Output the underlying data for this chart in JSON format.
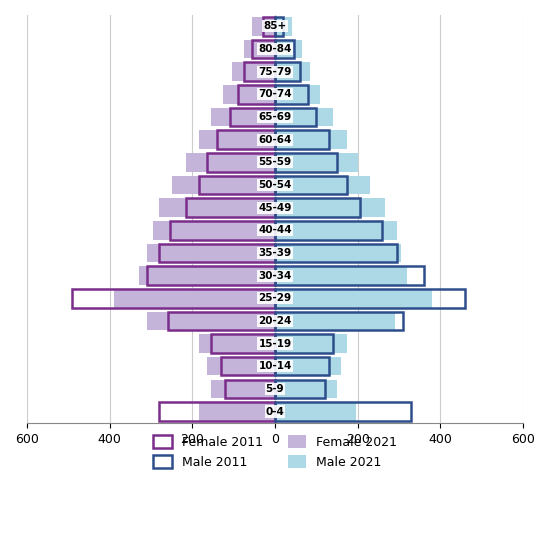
{
  "age_groups": [
    "0-4",
    "5-9",
    "10-14",
    "15-19",
    "20-24",
    "25-29",
    "30-34",
    "35-39",
    "40-44",
    "45-49",
    "50-54",
    "55-59",
    "60-64",
    "65-69",
    "70-74",
    "75-79",
    "80-84",
    "85+"
  ],
  "female_2011": [
    280,
    120,
    130,
    155,
    260,
    490,
    310,
    280,
    255,
    215,
    185,
    165,
    140,
    110,
    90,
    75,
    55,
    30
  ],
  "female_2021": [
    185,
    155,
    165,
    185,
    310,
    390,
    330,
    310,
    295,
    280,
    250,
    215,
    185,
    155,
    125,
    105,
    75,
    55
  ],
  "male_2011": [
    330,
    120,
    130,
    140,
    310,
    460,
    360,
    295,
    260,
    205,
    175,
    150,
    130,
    100,
    80,
    60,
    45,
    20
  ],
  "male_2021": [
    195,
    150,
    160,
    175,
    290,
    380,
    320,
    305,
    295,
    265,
    230,
    200,
    175,
    140,
    110,
    85,
    65,
    40
  ],
  "female_2011_color": "#7B2D8B",
  "female_2021_color": "#C4B4D9",
  "male_2011_color": "#2D4E8B",
  "male_2021_color": "#ADD8E6",
  "xlim": 600,
  "bar_height": 0.82,
  "grid_color": "#cccccc",
  "background_color": "#ffffff"
}
